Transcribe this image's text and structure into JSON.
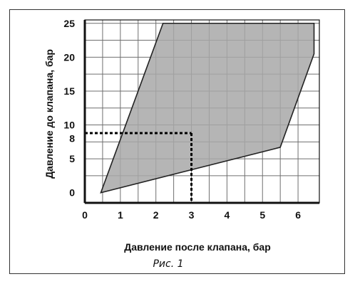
{
  "chart_data": {
    "type": "area",
    "xlabel": "Давление после клапана, бар",
    "ylabel": "Давление до клапана, бар",
    "caption": "Рис. 1",
    "xlim": [
      0,
      6.6
    ],
    "ylim": [
      -1.5,
      25.5
    ],
    "x_ticks": [
      0,
      1,
      2,
      3,
      4,
      5,
      6
    ],
    "y_ticks": [
      0,
      5,
      8,
      10,
      15,
      20,
      25
    ],
    "grid": true,
    "polygon": [
      {
        "x": 0.45,
        "y": 0
      },
      {
        "x": 2.2,
        "y": 25
      },
      {
        "x": 6.45,
        "y": 25
      },
      {
        "x": 6.45,
        "y": 20.5
      },
      {
        "x": 5.5,
        "y": 6.7
      },
      {
        "x": 0.45,
        "y": 0
      }
    ],
    "reference_point": {
      "x": 3,
      "y": 8.8
    },
    "colors": {
      "fill": "#a8a8a8",
      "grid": "#6f6f6f",
      "axis": "#111111"
    }
  }
}
